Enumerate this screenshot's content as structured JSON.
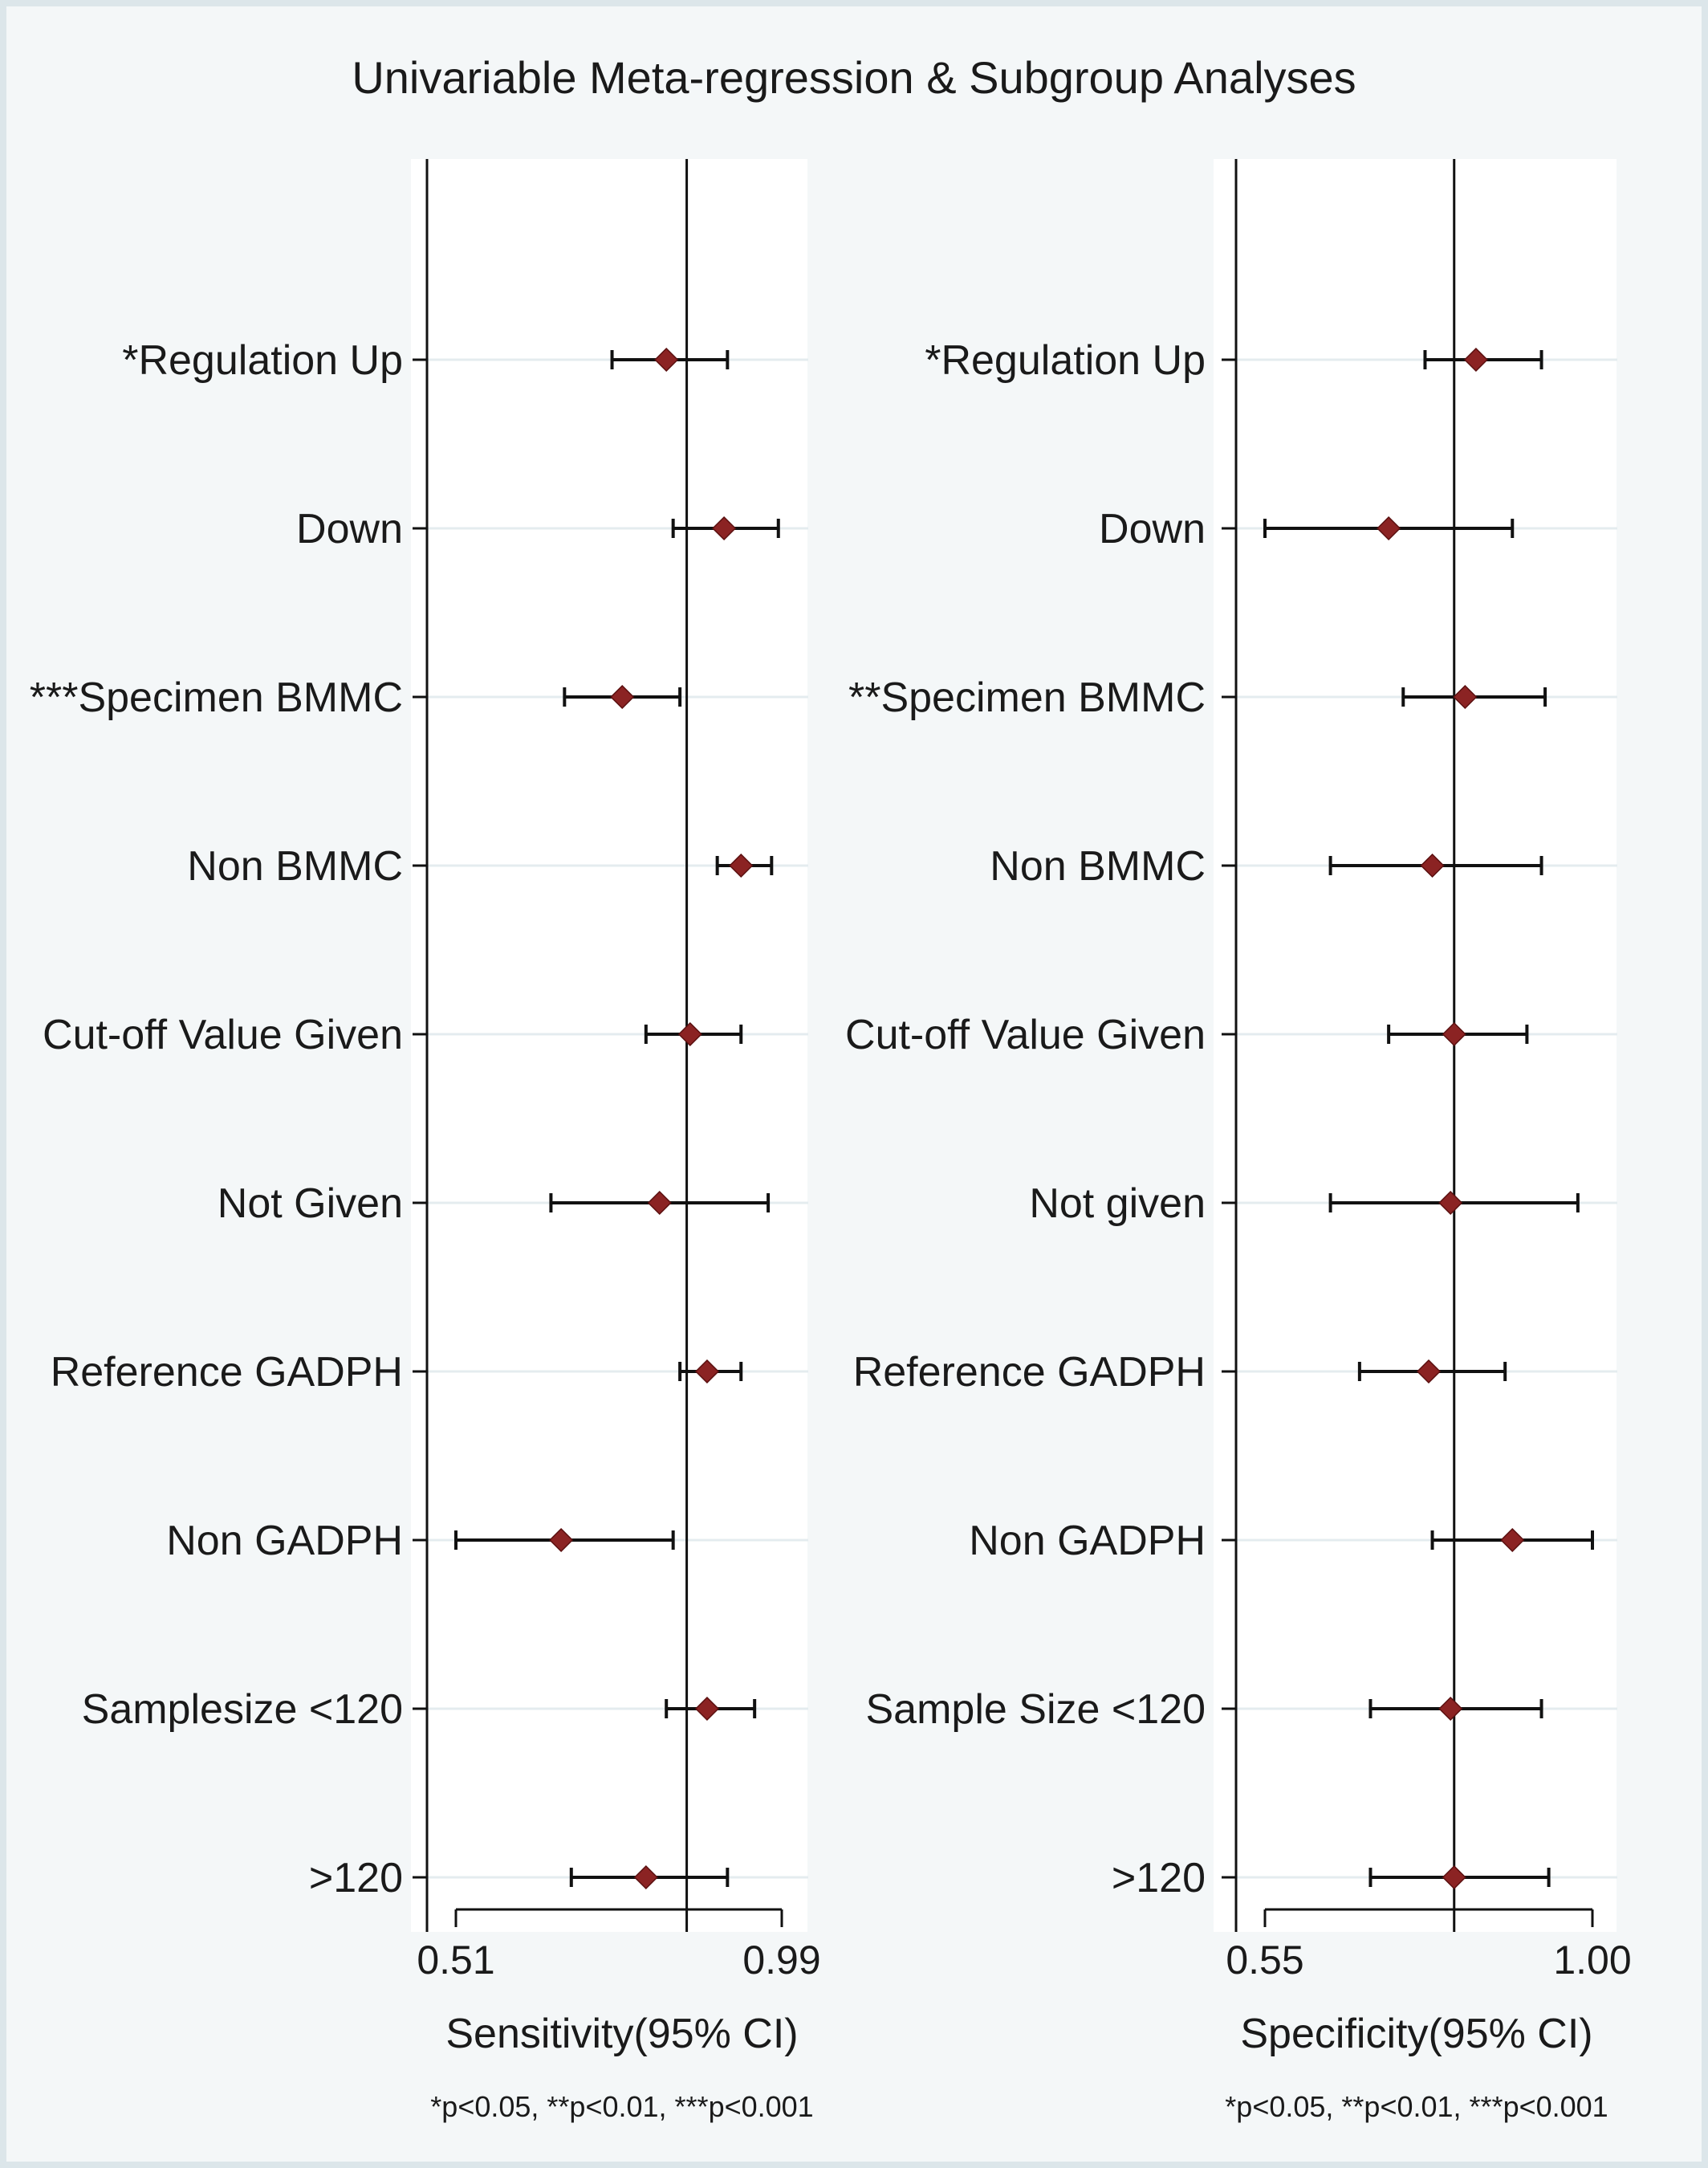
{
  "title": "Univariable Meta-regression & Subgroup Analyses",
  "colors": {
    "background": "#dce6ea",
    "panel": "#ffffff",
    "marker": "#8b2323",
    "line": "#111111",
    "gridline": "#e4ecef"
  },
  "chart_data": [
    {
      "type": "scatter",
      "subtype": "forest",
      "xlabel": "Sensitivity(95% CI)",
      "footnote": "*p<0.05, **p<0.01, ***p<0.001",
      "xlim": [
        0.51,
        0.99
      ],
      "xticks": [
        "0.51",
        "0.99"
      ],
      "reference_line": 0.85,
      "rows": [
        {
          "label": "*Regulation Up",
          "est": 0.82,
          "lo": 0.74,
          "hi": 0.91
        },
        {
          "label": "Down",
          "est": 0.905,
          "lo": 0.83,
          "hi": 0.985
        },
        {
          "label": "***Specimen BMMC",
          "est": 0.755,
          "lo": 0.67,
          "hi": 0.84
        },
        {
          "label": "Non BMMC",
          "est": 0.93,
          "lo": 0.895,
          "hi": 0.975
        },
        {
          "label": "Cut-off Value Given",
          "est": 0.855,
          "lo": 0.79,
          "hi": 0.93
        },
        {
          "label": "Not Given",
          "est": 0.81,
          "lo": 0.65,
          "hi": 0.97
        },
        {
          "label": "Reference GADPH",
          "est": 0.88,
          "lo": 0.84,
          "hi": 0.93
        },
        {
          "label": "Non GADPH",
          "est": 0.665,
          "lo": 0.51,
          "hi": 0.83
        },
        {
          "label": "Samplesize <120",
          "est": 0.88,
          "lo": 0.82,
          "hi": 0.95
        },
        {
          "label": ">120",
          "est": 0.79,
          "lo": 0.68,
          "hi": 0.91
        }
      ]
    },
    {
      "type": "scatter",
      "subtype": "forest",
      "xlabel": "Specificity(95% CI)",
      "footnote": "*p<0.05, **p<0.01, ***p<0.001",
      "xlim": [
        0.55,
        1.0
      ],
      "xticks": [
        "0.55",
        "1.00"
      ],
      "reference_line": 0.81,
      "rows": [
        {
          "label": "*Regulation Up",
          "est": 0.84,
          "lo": 0.77,
          "hi": 0.93
        },
        {
          "label": "Down",
          "est": 0.72,
          "lo": 0.55,
          "hi": 0.89
        },
        {
          "label": "**Specimen BMMC",
          "est": 0.825,
          "lo": 0.74,
          "hi": 0.935
        },
        {
          "label": "Non BMMC",
          "est": 0.78,
          "lo": 0.64,
          "hi": 0.93
        },
        {
          "label": "Cut-off Value Given",
          "est": 0.81,
          "lo": 0.72,
          "hi": 0.91
        },
        {
          "label": "Not given",
          "est": 0.805,
          "lo": 0.64,
          "hi": 0.98
        },
        {
          "label": "Reference GADPH",
          "est": 0.775,
          "lo": 0.68,
          "hi": 0.88
        },
        {
          "label": "Non GADPH",
          "est": 0.89,
          "lo": 0.78,
          "hi": 1.0
        },
        {
          "label": "Sample Size <120",
          "est": 0.805,
          "lo": 0.695,
          "hi": 0.93
        },
        {
          "label": ">120",
          "est": 0.81,
          "lo": 0.695,
          "hi": 0.94
        }
      ]
    }
  ]
}
